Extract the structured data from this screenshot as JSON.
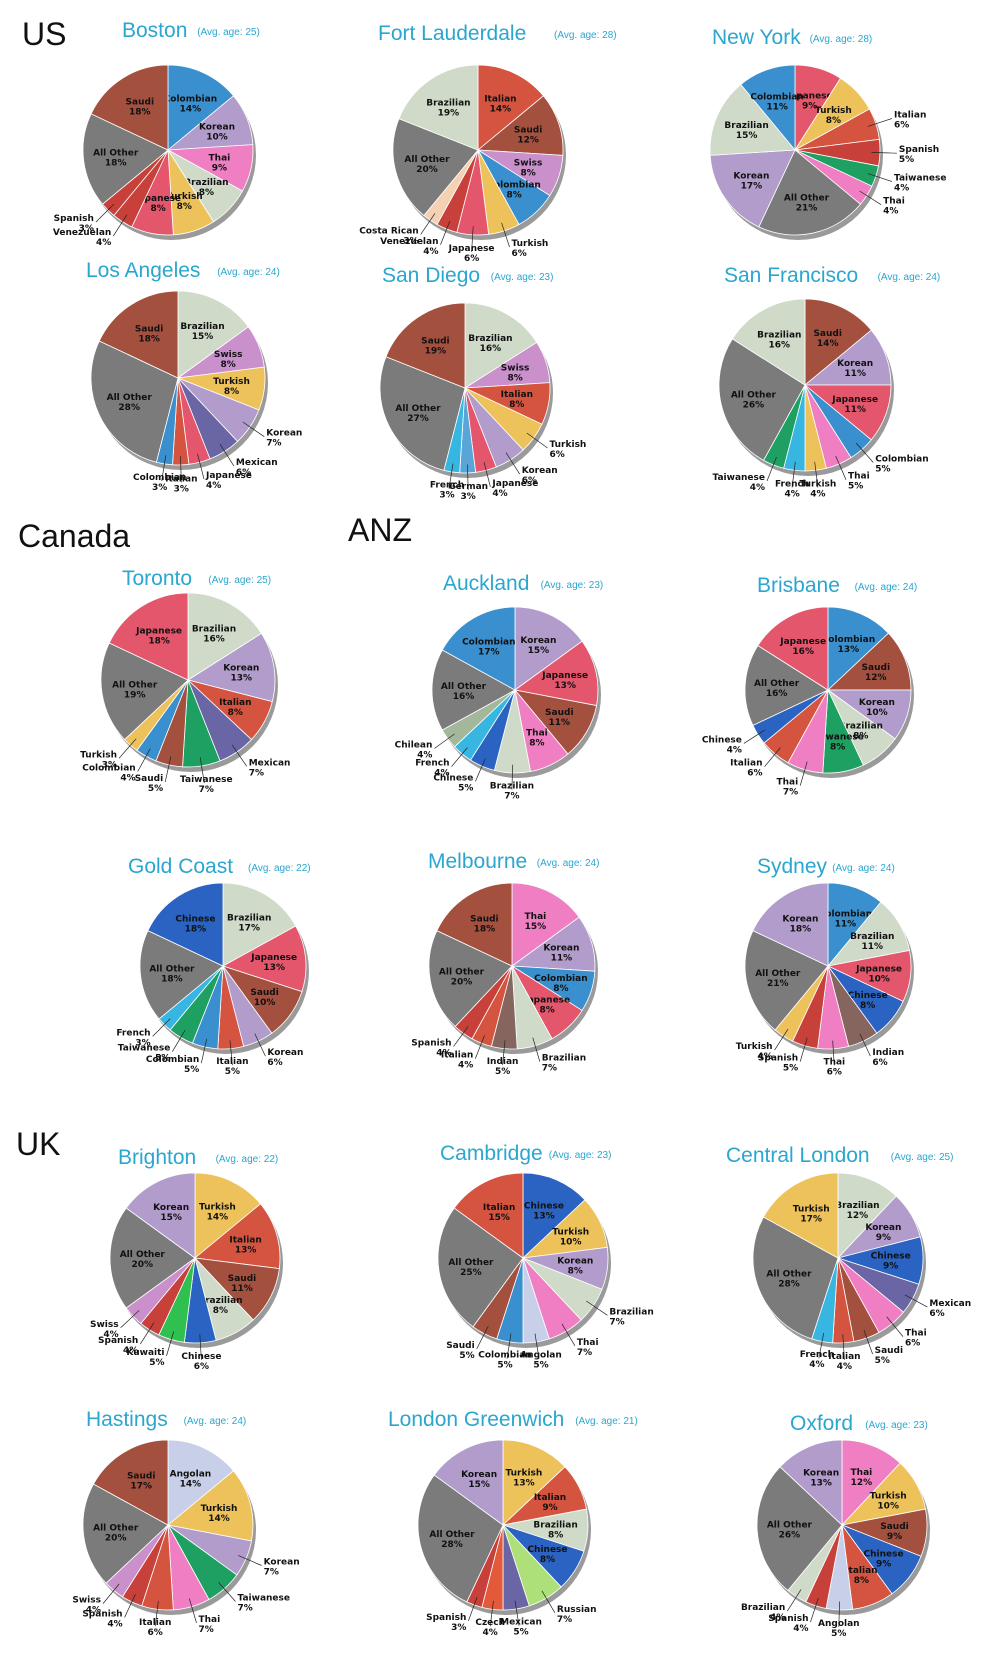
{
  "regions": [
    "US",
    "Canada",
    "ANZ",
    "UK"
  ],
  "colors": {
    "All Other": "#7b7b7b",
    "Saudi": "#a4503f",
    "Colombian": "#3a8fce",
    "Korean": "#b29ccc",
    "Thai": "#ef7fc2",
    "Brazilian": "#cfdac9",
    "Turkish": "#eec25a",
    "Japanese": "#e4566c",
    "Venezuelan": "#c7413a",
    "Spanish": "#c7413a",
    "Italian": "#d45440",
    "Swiss": "#c990cc",
    "Costa Rican": "#f3d1b2",
    "Taiwanese": "#1fa063",
    "Mexican": "#6a66a5",
    "French": "#38b6e2",
    "German": "#5aa5d8",
    "Chilean": "#a3b89a",
    "Chinese": "#2a63c2",
    "Indian": "#85655e",
    "Kuwaiti": "#2fc04f",
    "Angolan": "#c8cfe8",
    "Czech": "#e35a3a",
    "Russian": "#aee07a"
  },
  "chart_data": [
    {
      "type": "pie",
      "region": "US",
      "title": "Boston",
      "subtitle": "(Avg. age: 25)",
      "slices": [
        {
          "label": "Colombian",
          "value": 14
        },
        {
          "label": "Korean",
          "value": 10
        },
        {
          "label": "Thai",
          "value": 9
        },
        {
          "label": "Brazilian",
          "value": 8
        },
        {
          "label": "Turkish",
          "value": 8
        },
        {
          "label": "Japanese",
          "value": 8
        },
        {
          "label": "Venezuelan",
          "value": 4
        },
        {
          "label": "Spanish",
          "value": 3
        },
        {
          "label": "All Other",
          "value": 18
        },
        {
          "label": "Saudi",
          "value": 18
        }
      ]
    },
    {
      "type": "pie",
      "region": "US",
      "title": "Fort Lauderdale",
      "subtitle": "(Avg. age: 28)",
      "slices": [
        {
          "label": "Italian",
          "value": 14
        },
        {
          "label": "Saudi",
          "value": 12
        },
        {
          "label": "Swiss",
          "value": 8
        },
        {
          "label": "Colombian",
          "value": 8
        },
        {
          "label": "Turkish",
          "value": 6
        },
        {
          "label": "Japanese",
          "value": 6
        },
        {
          "label": "Venezuelan",
          "value": 4
        },
        {
          "label": "Costa Rican",
          "value": 3
        },
        {
          "label": "All Other",
          "value": 20
        },
        {
          "label": "Brazilian",
          "value": 19
        }
      ]
    },
    {
      "type": "pie",
      "region": "US",
      "title": "New York",
      "subtitle": "(Avg. age: 28)",
      "slices": [
        {
          "label": "Japanese",
          "value": 9
        },
        {
          "label": "Turkish",
          "value": 8
        },
        {
          "label": "Italian",
          "value": 6
        },
        {
          "label": "Spanish",
          "value": 5
        },
        {
          "label": "Taiwanese",
          "value": 4
        },
        {
          "label": "Thai",
          "value": 4
        },
        {
          "label": "All Other",
          "value": 21
        },
        {
          "label": "Korean",
          "value": 17
        },
        {
          "label": "Brazilian",
          "value": 15
        },
        {
          "label": "Colombian",
          "value": 11
        }
      ]
    },
    {
      "type": "pie",
      "region": "US",
      "title": "Los Angeles",
      "subtitle": "(Avg. age: 24)",
      "slices": [
        {
          "label": "Brazilian",
          "value": 15
        },
        {
          "label": "Swiss",
          "value": 8
        },
        {
          "label": "Turkish",
          "value": 8
        },
        {
          "label": "Korean",
          "value": 7
        },
        {
          "label": "Mexican",
          "value": 6
        },
        {
          "label": "Japanese",
          "value": 4
        },
        {
          "label": "Italian",
          "value": 3
        },
        {
          "label": "Colombian",
          "value": 3
        },
        {
          "label": "All Other",
          "value": 28
        },
        {
          "label": "Saudi",
          "value": 18
        }
      ]
    },
    {
      "type": "pie",
      "region": "US",
      "title": "San Diego",
      "subtitle": "(Avg. age: 23)",
      "slices": [
        {
          "label": "Brazilian",
          "value": 16
        },
        {
          "label": "Swiss",
          "value": 8
        },
        {
          "label": "Italian",
          "value": 8
        },
        {
          "label": "Turkish",
          "value": 6
        },
        {
          "label": "Korean",
          "value": 6
        },
        {
          "label": "Japanese",
          "value": 4
        },
        {
          "label": "German",
          "value": 3
        },
        {
          "label": "French",
          "value": 3
        },
        {
          "label": "All Other",
          "value": 27
        },
        {
          "label": "Saudi",
          "value": 19
        }
      ]
    },
    {
      "type": "pie",
      "region": "US",
      "title": "San Francisco",
      "subtitle": "(Avg. age: 24)",
      "slices": [
        {
          "label": "Saudi",
          "value": 14
        },
        {
          "label": "Korean",
          "value": 11
        },
        {
          "label": "Japanese",
          "value": 11
        },
        {
          "label": "Colombian",
          "value": 5
        },
        {
          "label": "Thai",
          "value": 5
        },
        {
          "label": "Turkish",
          "value": 4
        },
        {
          "label": "French",
          "value": 4
        },
        {
          "label": "Taiwanese",
          "value": 4
        },
        {
          "label": "All Other",
          "value": 26
        },
        {
          "label": "Brazilian",
          "value": 16
        }
      ]
    },
    {
      "type": "pie",
      "region": "Canada",
      "title": "Toronto",
      "subtitle": "(Avg. age: 25)",
      "slices": [
        {
          "label": "Brazilian",
          "value": 16
        },
        {
          "label": "Korean",
          "value": 13
        },
        {
          "label": "Italian",
          "value": 8
        },
        {
          "label": "Mexican",
          "value": 7
        },
        {
          "label": "Taiwanese",
          "value": 7
        },
        {
          "label": "Saudi",
          "value": 5
        },
        {
          "label": "Colombian",
          "value": 4
        },
        {
          "label": "Turkish",
          "value": 3
        },
        {
          "label": "All Other",
          "value": 19
        },
        {
          "label": "Japanese",
          "value": 18
        }
      ]
    },
    {
      "type": "pie",
      "region": "ANZ",
      "title": "Auckland",
      "subtitle": "(Avg. age: 23)",
      "slices": [
        {
          "label": "Korean",
          "value": 15
        },
        {
          "label": "Japanese",
          "value": 13
        },
        {
          "label": "Saudi",
          "value": 11
        },
        {
          "label": "Thai",
          "value": 8
        },
        {
          "label": "Brazilian",
          "value": 7
        },
        {
          "label": "Chinese",
          "value": 5
        },
        {
          "label": "French",
          "value": 4
        },
        {
          "label": "Chilean",
          "value": 4
        },
        {
          "label": "All Other",
          "value": 16
        },
        {
          "label": "Colombian",
          "value": 17
        }
      ]
    },
    {
      "type": "pie",
      "region": "ANZ",
      "title": "Brisbane",
      "subtitle": "(Avg. age: 24)",
      "slices": [
        {
          "label": "Colombian",
          "value": 13
        },
        {
          "label": "Saudi",
          "value": 12
        },
        {
          "label": "Korean",
          "value": 10
        },
        {
          "label": "Brazilian",
          "value": 8
        },
        {
          "label": "Taiwanese",
          "value": 8
        },
        {
          "label": "Thai",
          "value": 7
        },
        {
          "label": "Italian",
          "value": 6
        },
        {
          "label": "Chinese",
          "value": 4
        },
        {
          "label": "All Other",
          "value": 16
        },
        {
          "label": "Japanese",
          "value": 16
        }
      ]
    },
    {
      "type": "pie",
      "region": "ANZ",
      "title": "Gold Coast",
      "subtitle": "(Avg. age: 22)",
      "slices": [
        {
          "label": "Brazilian",
          "value": 17
        },
        {
          "label": "Japanese",
          "value": 13
        },
        {
          "label": "Saudi",
          "value": 10
        },
        {
          "label": "Korean",
          "value": 6
        },
        {
          "label": "Italian",
          "value": 5
        },
        {
          "label": "Colombian",
          "value": 5
        },
        {
          "label": "Taiwanese",
          "value": 5
        },
        {
          "label": "French",
          "value": 3
        },
        {
          "label": "All Other",
          "value": 18
        },
        {
          "label": "Chinese",
          "value": 18
        }
      ]
    },
    {
      "type": "pie",
      "region": "ANZ",
      "title": "Melbourne",
      "subtitle": "(Avg. age: 24)",
      "slices": [
        {
          "label": "Thai",
          "value": 15
        },
        {
          "label": "Korean",
          "value": 11
        },
        {
          "label": "Colombian",
          "value": 8
        },
        {
          "label": "Japanese",
          "value": 8
        },
        {
          "label": "Brazilian",
          "value": 7
        },
        {
          "label": "Indian",
          "value": 5
        },
        {
          "label": "Italian",
          "value": 4
        },
        {
          "label": "Spanish",
          "value": 4
        },
        {
          "label": "All Other",
          "value": 20
        },
        {
          "label": "Saudi",
          "value": 18
        }
      ]
    },
    {
      "type": "pie",
      "region": "ANZ",
      "title": "Sydney",
      "subtitle": "(Avg. age: 24)",
      "slices": [
        {
          "label": "Colombian",
          "value": 11
        },
        {
          "label": "Brazilian",
          "value": 11
        },
        {
          "label": "Japanese",
          "value": 10
        },
        {
          "label": "Chinese",
          "value": 8
        },
        {
          "label": "Indian",
          "value": 6
        },
        {
          "label": "Thai",
          "value": 6
        },
        {
          "label": "Spanish",
          "value": 5
        },
        {
          "label": "Turkish",
          "value": 4
        },
        {
          "label": "All Other",
          "value": 21
        },
        {
          "label": "Korean",
          "value": 18
        }
      ]
    },
    {
      "type": "pie",
      "region": "UK",
      "title": "Brighton",
      "subtitle": "(Avg. age: 22)",
      "slices": [
        {
          "label": "Turkish",
          "value": 14
        },
        {
          "label": "Italian",
          "value": 13
        },
        {
          "label": "Saudi",
          "value": 11
        },
        {
          "label": "Brazilian",
          "value": 8
        },
        {
          "label": "Chinese",
          "value": 6
        },
        {
          "label": "Kuwaiti",
          "value": 5
        },
        {
          "label": "Spanish",
          "value": 4
        },
        {
          "label": "Swiss",
          "value": 4
        },
        {
          "label": "All Other",
          "value": 20
        },
        {
          "label": "Korean",
          "value": 15
        }
      ]
    },
    {
      "type": "pie",
      "region": "UK",
      "title": "Cambridge",
      "subtitle": "(Avg. age: 23)",
      "slices": [
        {
          "label": "Chinese",
          "value": 13
        },
        {
          "label": "Turkish",
          "value": 10
        },
        {
          "label": "Korean",
          "value": 8
        },
        {
          "label": "Brazilian",
          "value": 7
        },
        {
          "label": "Thai",
          "value": 7
        },
        {
          "label": "Angolan",
          "value": 5
        },
        {
          "label": "Colombian",
          "value": 5
        },
        {
          "label": "Saudi",
          "value": 5
        },
        {
          "label": "All Other",
          "value": 25
        },
        {
          "label": "Italian",
          "value": 15
        }
      ]
    },
    {
      "type": "pie",
      "region": "UK",
      "title": "Central London",
      "subtitle": "(Avg. age: 25)",
      "slices": [
        {
          "label": "Brazilian",
          "value": 12
        },
        {
          "label": "Korean",
          "value": 9
        },
        {
          "label": "Chinese",
          "value": 9
        },
        {
          "label": "Mexican",
          "value": 6
        },
        {
          "label": "Thai",
          "value": 6
        },
        {
          "label": "Saudi",
          "value": 5
        },
        {
          "label": "Italian",
          "value": 4
        },
        {
          "label": "French",
          "value": 4
        },
        {
          "label": "All Other",
          "value": 28
        },
        {
          "label": "Turkish",
          "value": 17
        }
      ]
    },
    {
      "type": "pie",
      "region": "UK",
      "title": "Hastings",
      "subtitle": "(Avg. age: 24)",
      "slices": [
        {
          "label": "Angolan",
          "value": 14
        },
        {
          "label": "Turkish",
          "value": 14
        },
        {
          "label": "Korean",
          "value": 7
        },
        {
          "label": "Taiwanese",
          "value": 7
        },
        {
          "label": "Thai",
          "value": 7
        },
        {
          "label": "Italian",
          "value": 6
        },
        {
          "label": "Spanish",
          "value": 4
        },
        {
          "label": "Swiss",
          "value": 4
        },
        {
          "label": "All Other",
          "value": 20
        },
        {
          "label": "Saudi",
          "value": 17
        }
      ]
    },
    {
      "type": "pie",
      "region": "UK",
      "title": "London Greenwich",
      "subtitle": "(Avg. age: 21)",
      "slices": [
        {
          "label": "Turkish",
          "value": 13
        },
        {
          "label": "Italian",
          "value": 9
        },
        {
          "label": "Brazilian",
          "value": 8
        },
        {
          "label": "Chinese",
          "value": 8
        },
        {
          "label": "Russian",
          "value": 7
        },
        {
          "label": "Mexican",
          "value": 5
        },
        {
          "label": "Czech",
          "value": 4
        },
        {
          "label": "Spanish",
          "value": 3
        },
        {
          "label": "All Other",
          "value": 28
        },
        {
          "label": "Korean",
          "value": 15
        }
      ]
    },
    {
      "type": "pie",
      "region": "UK",
      "title": "Oxford",
      "subtitle": "(Avg. age: 23)",
      "slices": [
        {
          "label": "Thai",
          "value": 12
        },
        {
          "label": "Turkish",
          "value": 10
        },
        {
          "label": "Saudi",
          "value": 9
        },
        {
          "label": "Chinese",
          "value": 9
        },
        {
          "label": "Italian",
          "value": 8
        },
        {
          "label": "Angolan",
          "value": 5
        },
        {
          "label": "Spanish",
          "value": 4
        },
        {
          "label": "Brazilian",
          "value": 4
        },
        {
          "label": "All Other",
          "value": 26
        },
        {
          "label": "Korean",
          "value": 13
        }
      ]
    }
  ]
}
